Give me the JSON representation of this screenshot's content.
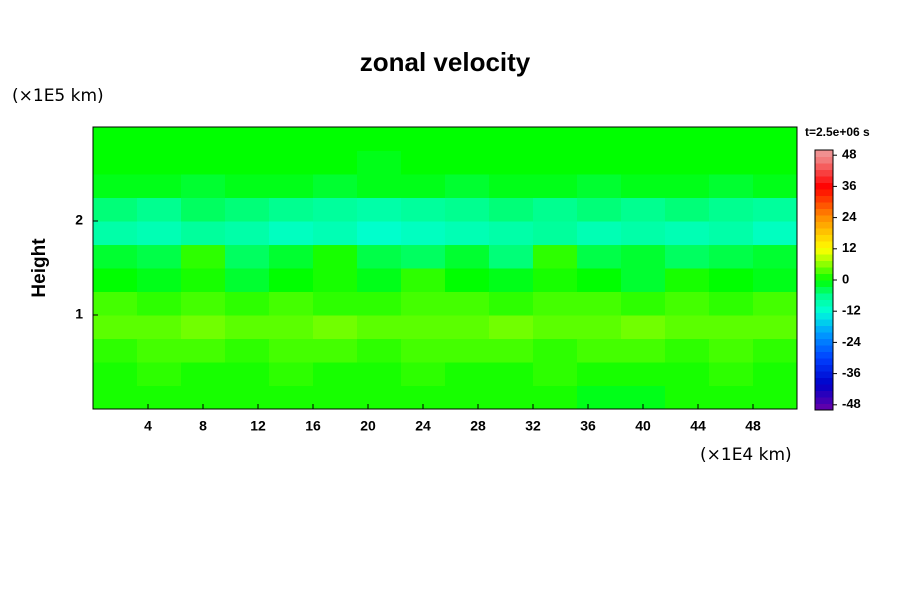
{
  "chart_data": {
    "type": "heatmap",
    "title": "zonal velocity",
    "y_label": "Height",
    "x_unit": "(×1E4 km)",
    "y_unit": "(×1E5 km)",
    "time_label": "t=2.5e+06 s",
    "xlim": [
      0,
      51.2
    ],
    "ylim": [
      0,
      3
    ],
    "xticks": [
      4,
      8,
      12,
      16,
      20,
      24,
      28,
      32,
      36,
      40,
      44,
      48
    ],
    "yticks": [
      1,
      2
    ],
    "clim": [
      -50,
      50
    ],
    "colorbar_ticks": [
      48,
      36,
      24,
      12,
      0,
      -12,
      -24,
      -36,
      -48
    ],
    "colorscale": [
      [
        -50,
        "#6a00a8"
      ],
      [
        -40,
        "#0000c8"
      ],
      [
        -30,
        "#0040ff"
      ],
      [
        -20,
        "#00a0ff"
      ],
      [
        -12,
        "#00ffd8"
      ],
      [
        -6,
        "#00ff90"
      ],
      [
        0,
        "#00ff00"
      ],
      [
        6,
        "#88ff00"
      ],
      [
        12,
        "#ffff00"
      ],
      [
        24,
        "#ff9000"
      ],
      [
        36,
        "#ff0000"
      ],
      [
        48,
        "#f09090"
      ]
    ],
    "z": [
      [
        1,
        1,
        1,
        1,
        1,
        1,
        1,
        1,
        1,
        1,
        1,
        -1,
        -1,
        1,
        1,
        1
      ],
      [
        1,
        2,
        1,
        1,
        2,
        1,
        1,
        2,
        1,
        1,
        2,
        1,
        1,
        1,
        2,
        1
      ],
      [
        2,
        3,
        3,
        2,
        3,
        3,
        2,
        3,
        3,
        3,
        2,
        3,
        3,
        2,
        3,
        2
      ],
      [
        4,
        4,
        5,
        4,
        4,
        5,
        4,
        4,
        4,
        5,
        4,
        4,
        5,
        4,
        4,
        4
      ],
      [
        3,
        2,
        3,
        2,
        3,
        2,
        2,
        3,
        3,
        2,
        3,
        3,
        2,
        3,
        2,
        3
      ],
      [
        0,
        -1,
        1,
        -2,
        0,
        1,
        -1,
        2,
        0,
        -1,
        1,
        0,
        -2,
        1,
        0,
        -1
      ],
      [
        -2,
        -3,
        2,
        -4,
        -2,
        1,
        -3,
        -4,
        -2,
        -5,
        2,
        -3,
        -2,
        -4,
        -3,
        -2
      ],
      [
        -8,
        -9,
        -7,
        -8,
        -10,
        -9,
        -11,
        -10,
        -9,
        -8,
        -7,
        -9,
        -8,
        -9,
        -8,
        -10
      ],
      [
        -5,
        -6,
        -4,
        -5,
        -6,
        -7,
        -8,
        -7,
        -6,
        -5,
        -6,
        -5,
        -6,
        -5,
        -6,
        -7
      ],
      [
        -1,
        -1,
        -2,
        -1,
        -1,
        -2,
        -1,
        -1,
        -2,
        -1,
        -1,
        -2,
        -1,
        -1,
        -2,
        -1
      ],
      [
        0,
        0,
        0,
        0,
        0,
        0,
        -1,
        0,
        0,
        0,
        0,
        0,
        0,
        0,
        0,
        0
      ],
      [
        0,
        0,
        0,
        0,
        0,
        0,
        0,
        0,
        0,
        0,
        0,
        0,
        0,
        0,
        0,
        0
      ]
    ]
  }
}
